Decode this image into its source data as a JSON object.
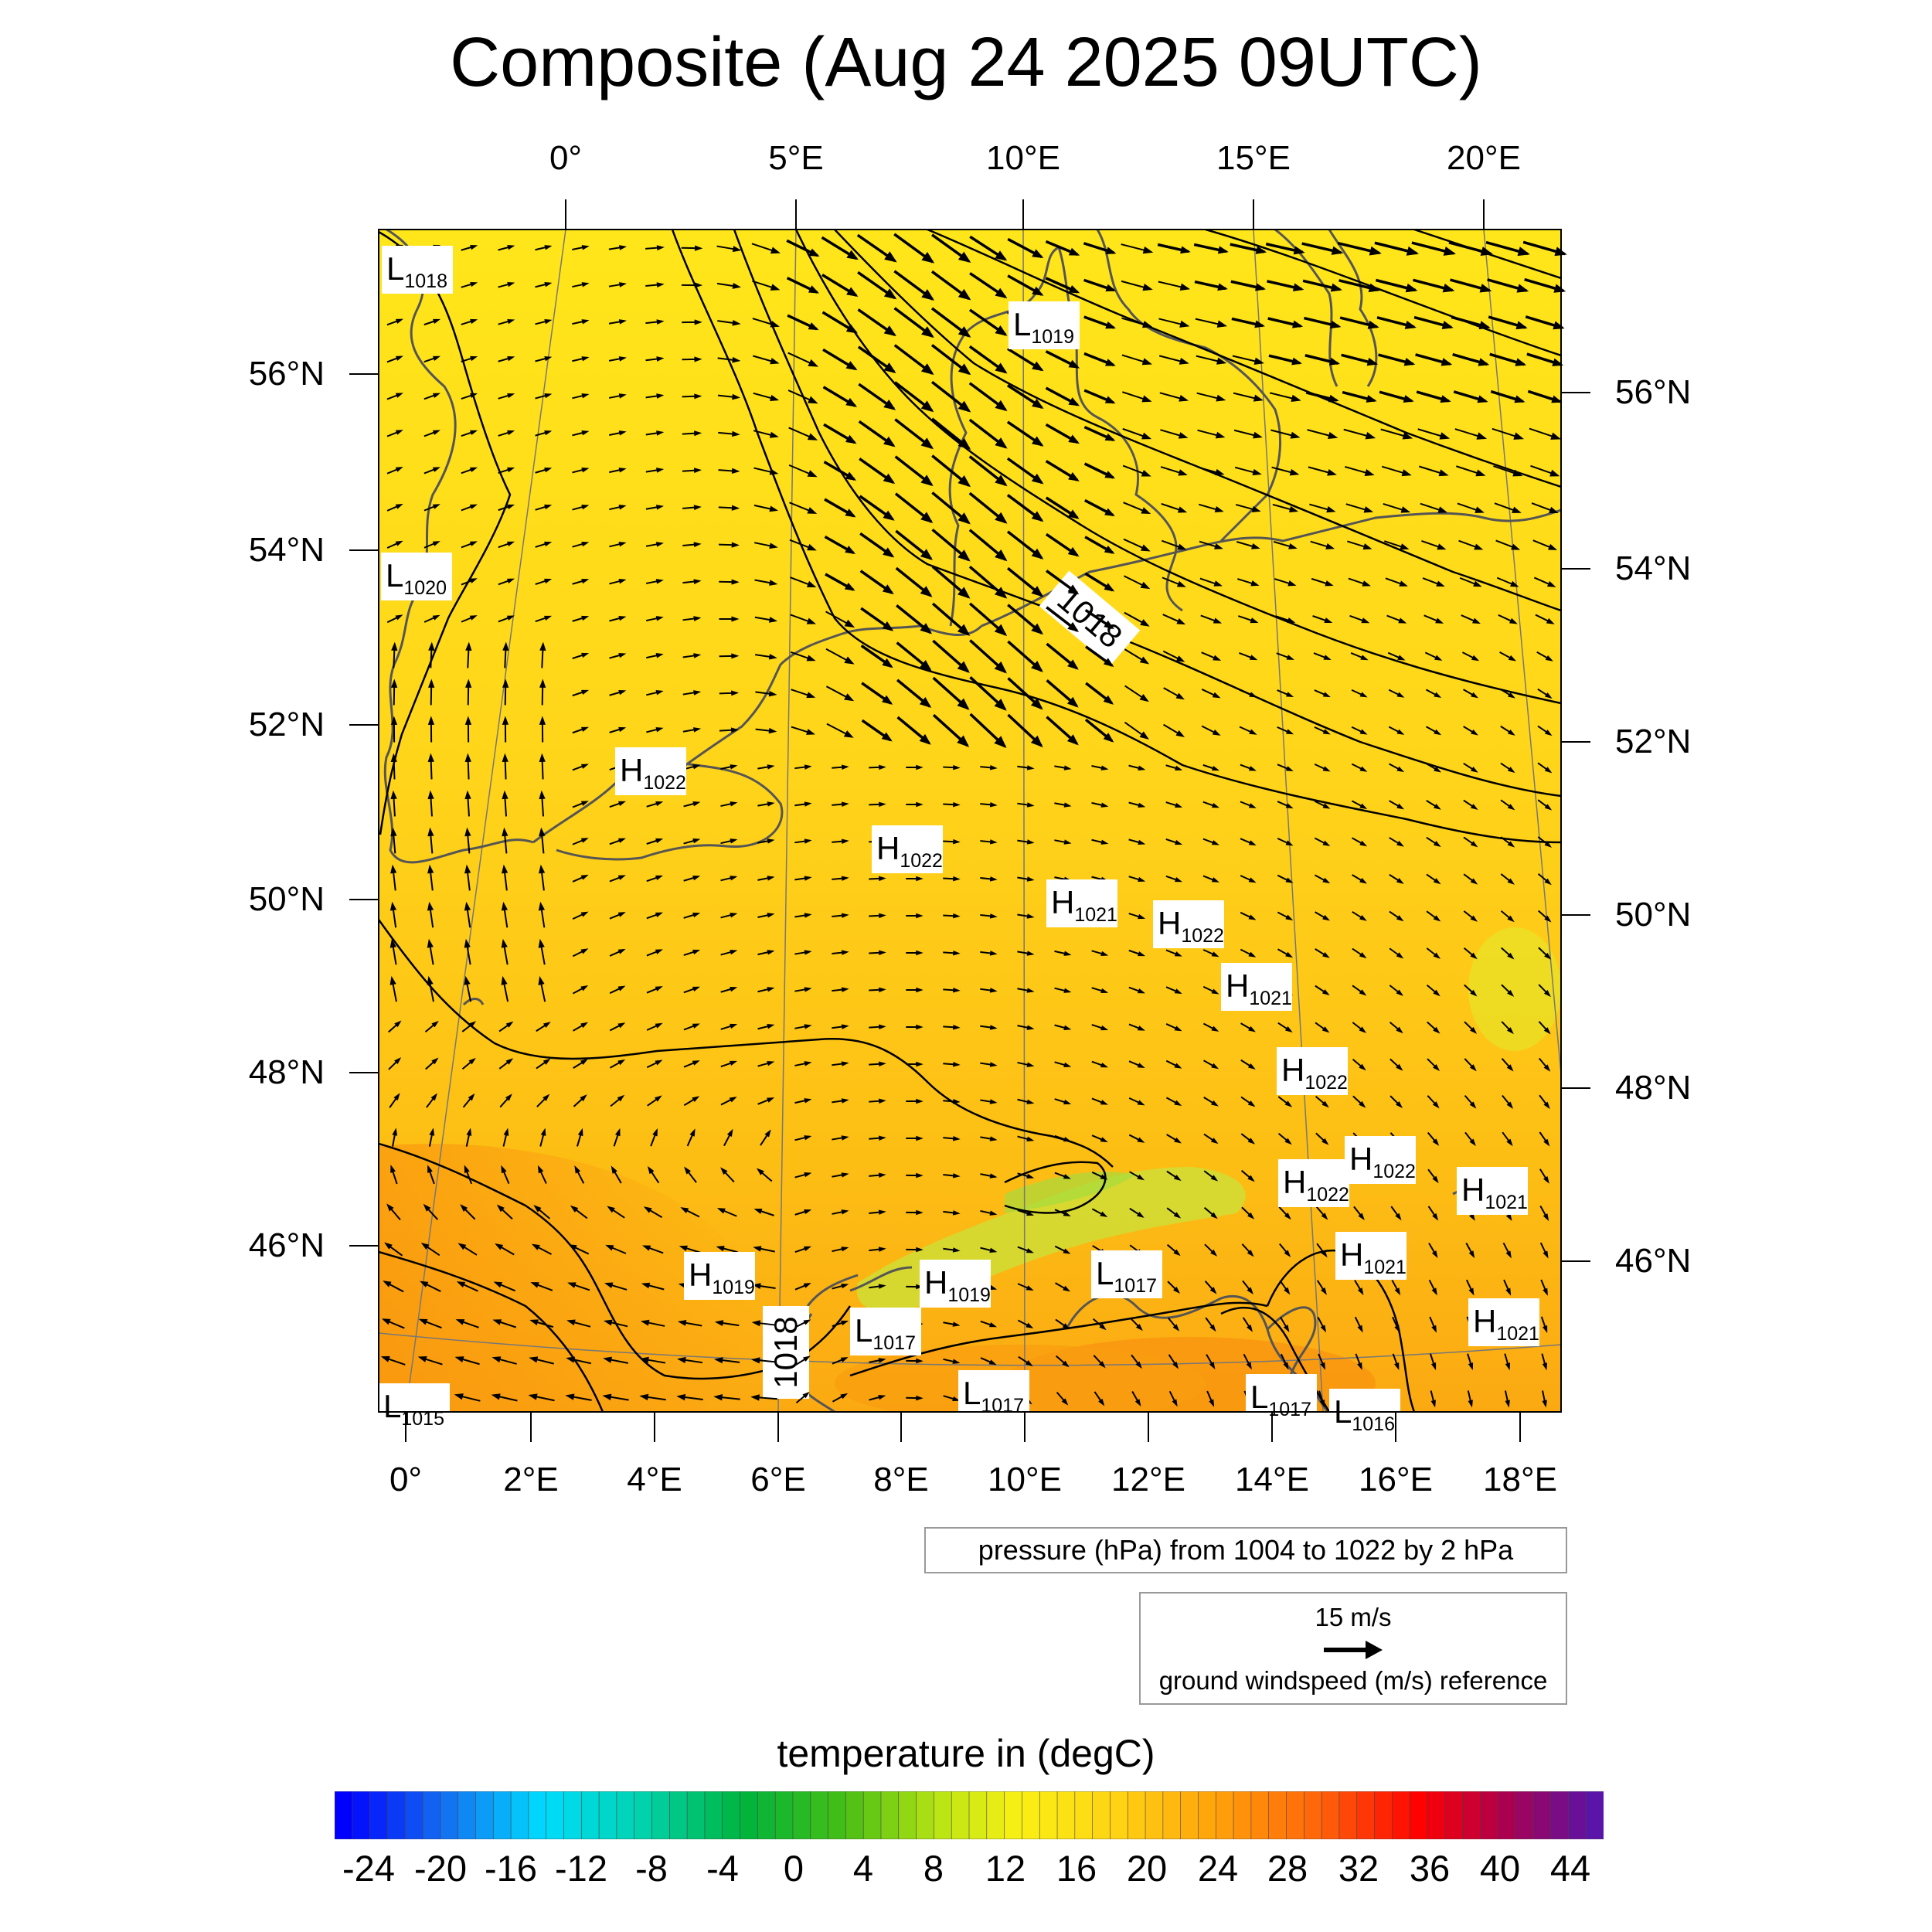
{
  "title": "Composite (Aug 24 2025 09UTC)",
  "top_lon_labels": [
    "0°",
    "5°E",
    "10°E",
    "15°E",
    "20°E"
  ],
  "bottom_lon_labels": [
    "0°",
    "2°E",
    "4°E",
    "6°E",
    "8°E",
    "10°E",
    "12°E",
    "14°E",
    "16°E",
    "18°E"
  ],
  "left_lat_labels": [
    "56°N",
    "54°N",
    "52°N",
    "50°N",
    "48°N",
    "46°N"
  ],
  "right_lat_labels": [
    "56°N",
    "54°N",
    "52°N",
    "50°N",
    "48°N",
    "46°N"
  ],
  "pressure_note": "pressure (hPa) from 1004 to 1022 by 2 hPa",
  "wind_ref": {
    "speed": "15 m/s",
    "label": "ground windspeed (m/s) reference"
  },
  "colorbar": {
    "title": "temperature in (degC)",
    "labels": [
      "-24",
      "-20",
      "-16",
      "-12",
      "-8",
      "-4",
      "0",
      "4",
      "8",
      "12",
      "16",
      "20",
      "24",
      "28",
      "32",
      "36",
      "40",
      "44"
    ]
  },
  "contour_labels": [
    "1018",
    "1018"
  ],
  "pressure_centers": [
    {
      "type": "L",
      "value": "1018"
    },
    {
      "type": "L",
      "value": "1019"
    },
    {
      "type": "L",
      "value": "1020"
    },
    {
      "type": "H",
      "value": "1022"
    },
    {
      "type": "H",
      "value": "1022"
    },
    {
      "type": "H",
      "value": "1021"
    },
    {
      "type": "H",
      "value": "1022"
    },
    {
      "type": "H",
      "value": "1021"
    },
    {
      "type": "H",
      "value": "1022"
    },
    {
      "type": "H",
      "value": "1022"
    },
    {
      "type": "H",
      "value": "1022"
    },
    {
      "type": "H",
      "value": "1021"
    },
    {
      "type": "H",
      "value": "1019"
    },
    {
      "type": "H",
      "value": "1019"
    },
    {
      "type": "L",
      "value": "1017"
    },
    {
      "type": "H",
      "value": "1021"
    },
    {
      "type": "L",
      "value": "1017"
    },
    {
      "type": "H",
      "value": "1021"
    },
    {
      "type": "L",
      "value": "1017"
    },
    {
      "type": "L",
      "value": "1017"
    },
    {
      "type": "L",
      "value": "1016"
    },
    {
      "type": "L",
      "value": "1015"
    }
  ],
  "colors": {
    "map_base": "#ffd21a",
    "north_tint": "#ffe21a",
    "south_tint": "#fba00f",
    "alps_green": "#c6e33a",
    "arrow": "#000000",
    "coast": "#555555"
  }
}
